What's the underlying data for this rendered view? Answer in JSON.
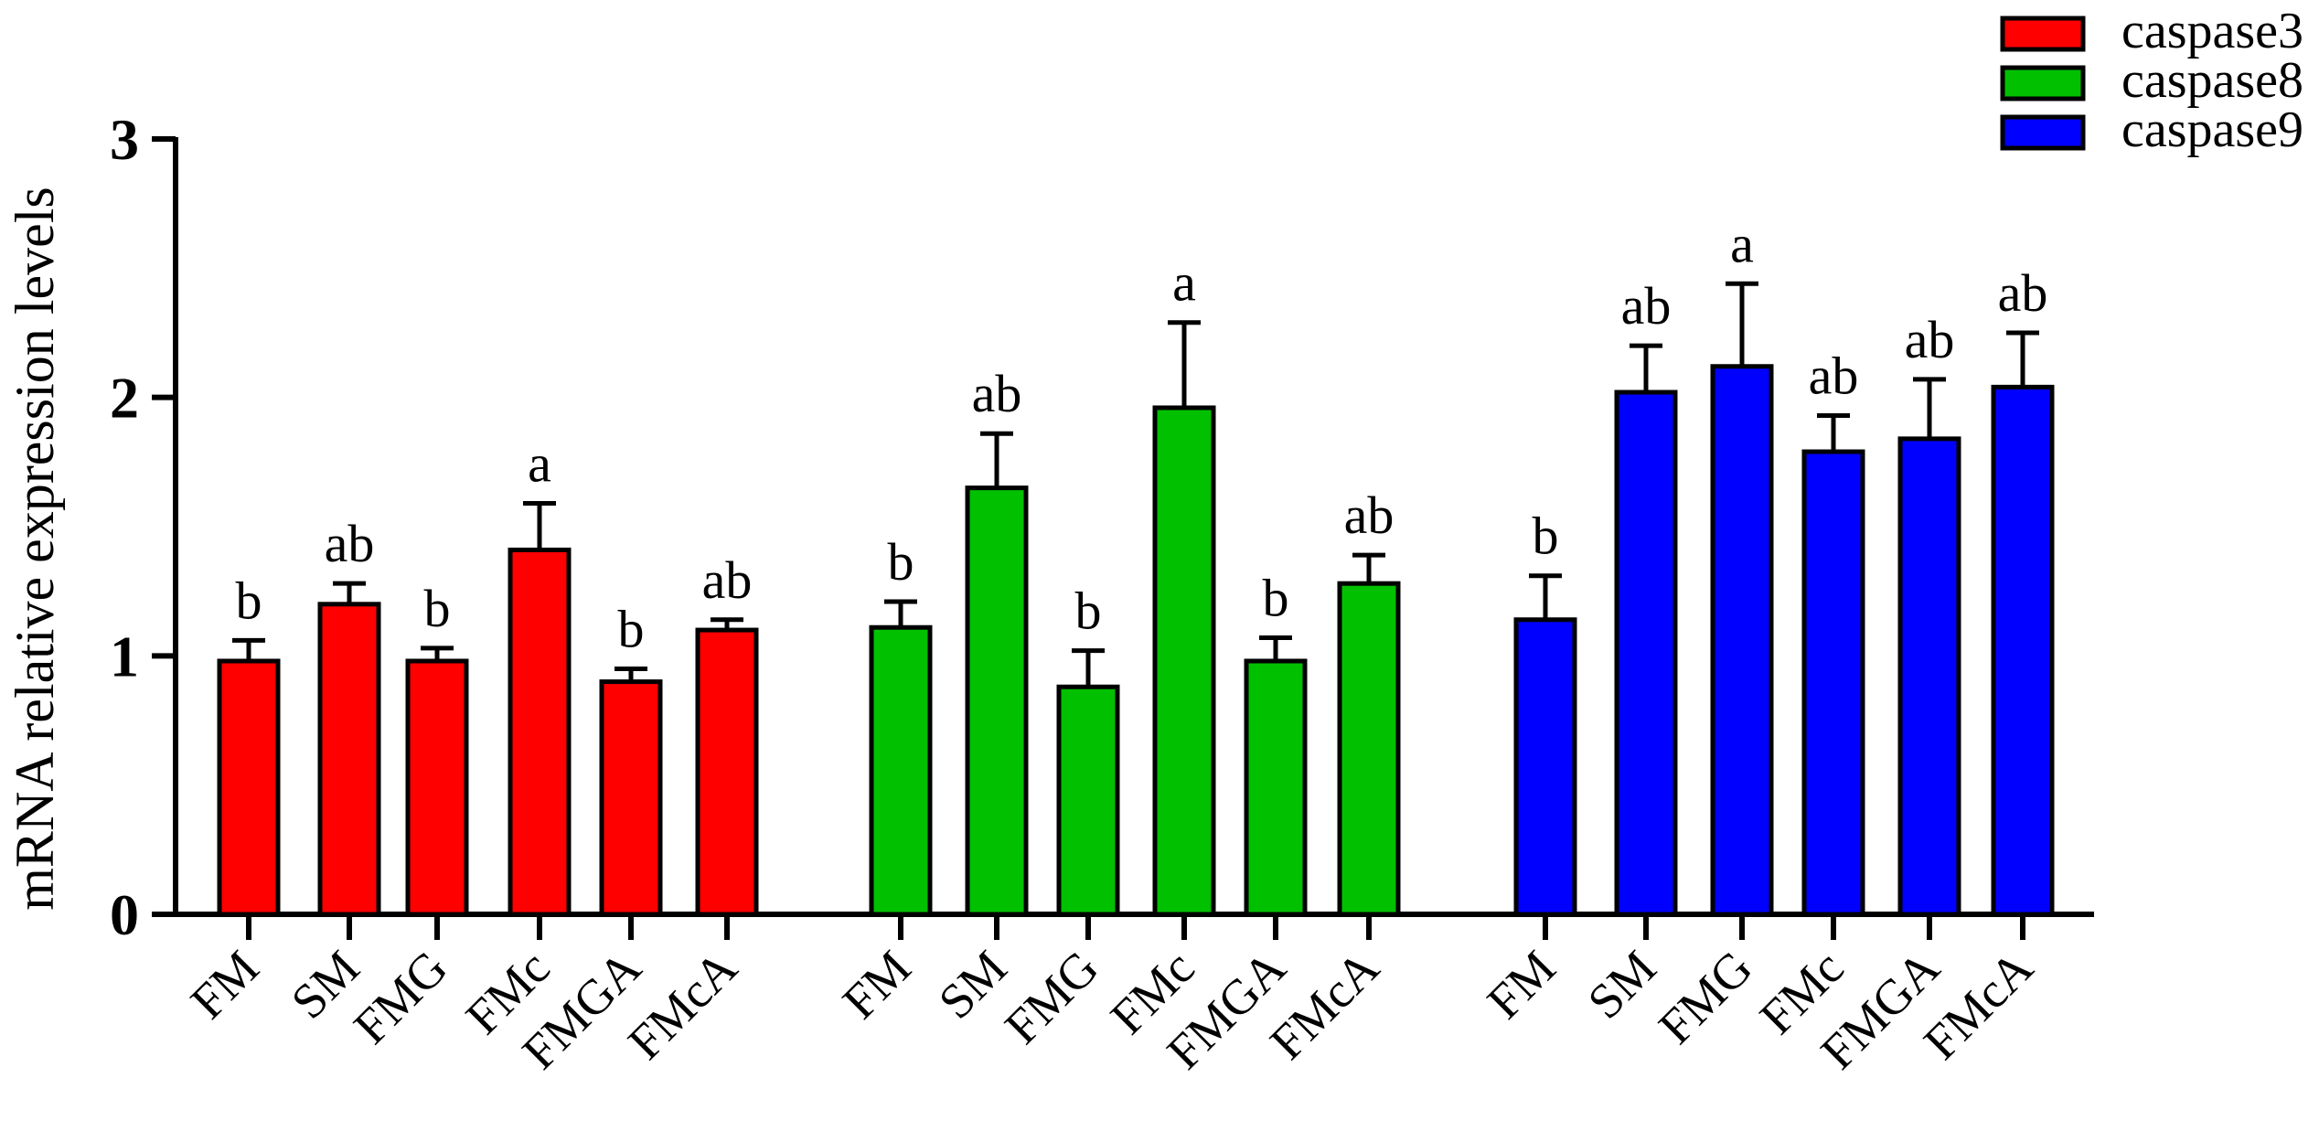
{
  "chart_data": {
    "type": "bar",
    "ylabel": "mRNA relative expression levels",
    "xlabel": "",
    "ylim": [
      0,
      3
    ],
    "yticks": [
      "0",
      "1",
      "2",
      "3"
    ],
    "grid": false,
    "legend_position": "top-right",
    "categories": [
      "FM",
      "SM",
      "FMG",
      "FMc",
      "FMGA",
      "FMcA"
    ],
    "series": [
      {
        "name": "caspase3",
        "color": "#ff0000",
        "values": [
          0.98,
          1.2,
          0.98,
          1.41,
          0.9,
          1.1
        ],
        "errors": [
          0.08,
          0.08,
          0.05,
          0.18,
          0.05,
          0.04
        ],
        "labels": [
          "b",
          "ab",
          "b",
          "a",
          "b",
          "ab"
        ]
      },
      {
        "name": "caspase8",
        "color": "#00c000",
        "values": [
          1.11,
          1.65,
          0.88,
          1.96,
          0.98,
          1.28
        ],
        "errors": [
          0.1,
          0.21,
          0.14,
          0.33,
          0.09,
          0.11
        ],
        "labels": [
          "b",
          "ab",
          "b",
          "a",
          "b",
          "ab"
        ]
      },
      {
        "name": "caspase9",
        "color": "#0000ff",
        "values": [
          1.14,
          2.02,
          2.12,
          1.79,
          1.84,
          2.04
        ],
        "errors": [
          0.17,
          0.18,
          0.32,
          0.14,
          0.23,
          0.21
        ],
        "labels": [
          "b",
          "ab",
          "a",
          "ab",
          "ab",
          "ab"
        ]
      }
    ]
  }
}
